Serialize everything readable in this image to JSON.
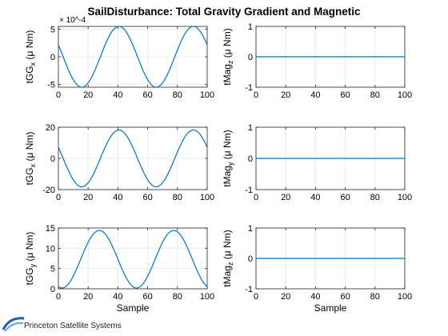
{
  "title": "SailDisturbance: Total Gravity Gradient and Magnetic",
  "logo_text": "Princeton Satellite Systems",
  "colors": {
    "line": "#0072BD",
    "grid": "#ebebeb",
    "axis": "#262626",
    "text": "#000000",
    "logo": "#1f5fa8"
  },
  "chart_data": [
    {
      "type": "line",
      "panel": "gg-1",
      "ylabel_main": "tGG",
      "ylabel_sub": "x",
      "ylabel_unit": "(μ Nm)",
      "xlabel": "",
      "xlim": [
        0,
        100
      ],
      "ylim": [
        -5.5,
        5.5
      ],
      "xticks": [
        0,
        20,
        40,
        60,
        80,
        100
      ],
      "xtick_labels": [
        "0",
        "20",
        "40",
        "60",
        "80",
        "100"
      ],
      "yticks": [
        -5,
        0,
        5
      ],
      "ytick_labels": [
        "-5",
        "0",
        "5"
      ],
      "exponent_label": "× 10^-4",
      "series": [
        {
          "name": "tGG_x",
          "amplitude": 5.5,
          "period": 50,
          "phase_deg": 157,
          "offset": 0,
          "x": [
            0,
            5,
            10,
            15,
            20,
            25,
            30,
            35,
            40,
            45,
            50,
            55,
            60,
            65,
            70,
            75,
            80,
            85,
            90,
            95,
            100
          ],
          "values": [
            2.1,
            -1.4,
            -4.4,
            -5.5,
            -4.1,
            -1.1,
            2.4,
            4.8,
            5.5,
            4.1,
            1.1,
            -2.4,
            -4.8,
            -5.5,
            -4.1,
            -1.1,
            2.4,
            4.8,
            5.5,
            4.1,
            2.1
          ]
        }
      ]
    },
    {
      "type": "line",
      "panel": "mag-1",
      "ylabel_main": "tMag",
      "ylabel_sub": "z",
      "ylabel_unit": "(μ Nm)",
      "xlabel": "",
      "xlim": [
        0,
        100
      ],
      "ylim": [
        -1,
        1
      ],
      "xticks": [
        0,
        20,
        40,
        60,
        80,
        100
      ],
      "xtick_labels": [
        "0",
        "20",
        "40",
        "60",
        "80",
        "100"
      ],
      "yticks": [
        -1,
        0,
        1
      ],
      "ytick_labels": [
        "-1",
        "0",
        "1"
      ],
      "series": [
        {
          "name": "tMag_z",
          "x": [
            0,
            100
          ],
          "values": [
            0,
            0
          ]
        }
      ]
    },
    {
      "type": "line",
      "panel": "gg-2",
      "ylabel_main": "tGG",
      "ylabel_sub": "x",
      "ylabel_unit": "(μ Nm)",
      "xlabel": "",
      "xlim": [
        0,
        100
      ],
      "ylim": [
        -20,
        20
      ],
      "xticks": [
        0,
        20,
        40,
        60,
        80,
        100
      ],
      "xtick_labels": [
        "0",
        "20",
        "40",
        "60",
        "80",
        "100"
      ],
      "yticks": [
        -20,
        0,
        20
      ],
      "ytick_labels": [
        "-20",
        "0",
        "20"
      ],
      "series": [
        {
          "name": "tGG_x",
          "amplitude": 18.2,
          "period": 50,
          "phase_deg": 157,
          "offset": 0,
          "x": [
            0,
            5,
            10,
            15,
            20,
            25,
            30,
            35,
            40,
            45,
            50,
            55,
            60,
            65,
            70,
            75,
            80,
            85,
            90,
            95,
            100
          ],
          "values": [
            7.1,
            -4.6,
            -14.6,
            -18.2,
            -13.6,
            -3.6,
            7.9,
            15.9,
            18.1,
            13.5,
            3.6,
            -7.9,
            -15.9,
            -18.1,
            -13.5,
            -3.6,
            7.9,
            15.9,
            18.1,
            13.5,
            7.1
          ]
        }
      ]
    },
    {
      "type": "line",
      "panel": "mag-2",
      "ylabel_main": "tMag",
      "ylabel_sub": "y",
      "ylabel_unit": "(μ Nm)",
      "xlabel": "",
      "xlim": [
        0,
        100
      ],
      "ylim": [
        -1,
        1
      ],
      "xticks": [
        0,
        20,
        40,
        60,
        80,
        100
      ],
      "xtick_labels": [
        "0",
        "20",
        "40",
        "60",
        "80",
        "100"
      ],
      "yticks": [
        -1,
        0,
        1
      ],
      "ytick_labels": [
        "-1",
        "0",
        "1"
      ],
      "series": [
        {
          "name": "tMag_y",
          "x": [
            0,
            100
          ],
          "values": [
            0,
            0
          ]
        }
      ]
    },
    {
      "type": "line",
      "panel": "gg-3",
      "ylabel_main": "tGG",
      "ylabel_sub": "y",
      "ylabel_unit": "(μ Nm)",
      "xlabel": "Sample",
      "xlim": [
        0,
        100
      ],
      "ylim": [
        0,
        15
      ],
      "xticks": [
        0,
        20,
        40,
        60,
        80,
        100
      ],
      "xtick_labels": [
        "0",
        "20",
        "40",
        "60",
        "80",
        "100"
      ],
      "yticks": [
        0,
        5,
        10,
        15
      ],
      "ytick_labels": [
        "0",
        "5",
        "10",
        "15"
      ],
      "series": [
        {
          "name": "tGG_y",
          "amplitude": 7.1,
          "period": 50,
          "phase_deg": 252,
          "offset": 7.3,
          "x": [
            0,
            5,
            10,
            15,
            20,
            25,
            30,
            35,
            40,
            45,
            50,
            55,
            60,
            65,
            70,
            75,
            80,
            85,
            90,
            95,
            100
          ],
          "values": [
            0.5,
            0.8,
            3.6,
            8.0,
            12.1,
            14.3,
            13.9,
            10.8,
            6.3,
            2.3,
            0.3,
            0.8,
            3.6,
            8.0,
            12.1,
            14.3,
            13.9,
            10.8,
            6.3,
            2.3,
            0.4
          ]
        }
      ]
    },
    {
      "type": "line",
      "panel": "mag-3",
      "ylabel_main": "tMag",
      "ylabel_sub": "z",
      "ylabel_unit": "(μ Nm)",
      "xlabel": "Sample",
      "xlim": [
        0,
        100
      ],
      "ylim": [
        -1,
        1
      ],
      "xticks": [
        0,
        20,
        40,
        60,
        80,
        100
      ],
      "xtick_labels": [
        "0",
        "20",
        "40",
        "60",
        "80",
        "100"
      ],
      "yticks": [
        -1,
        0,
        1
      ],
      "ytick_labels": [
        "-1",
        "0",
        "1"
      ],
      "series": [
        {
          "name": "tMag_z",
          "x": [
            0,
            100
          ],
          "values": [
            0,
            0
          ]
        }
      ]
    }
  ]
}
